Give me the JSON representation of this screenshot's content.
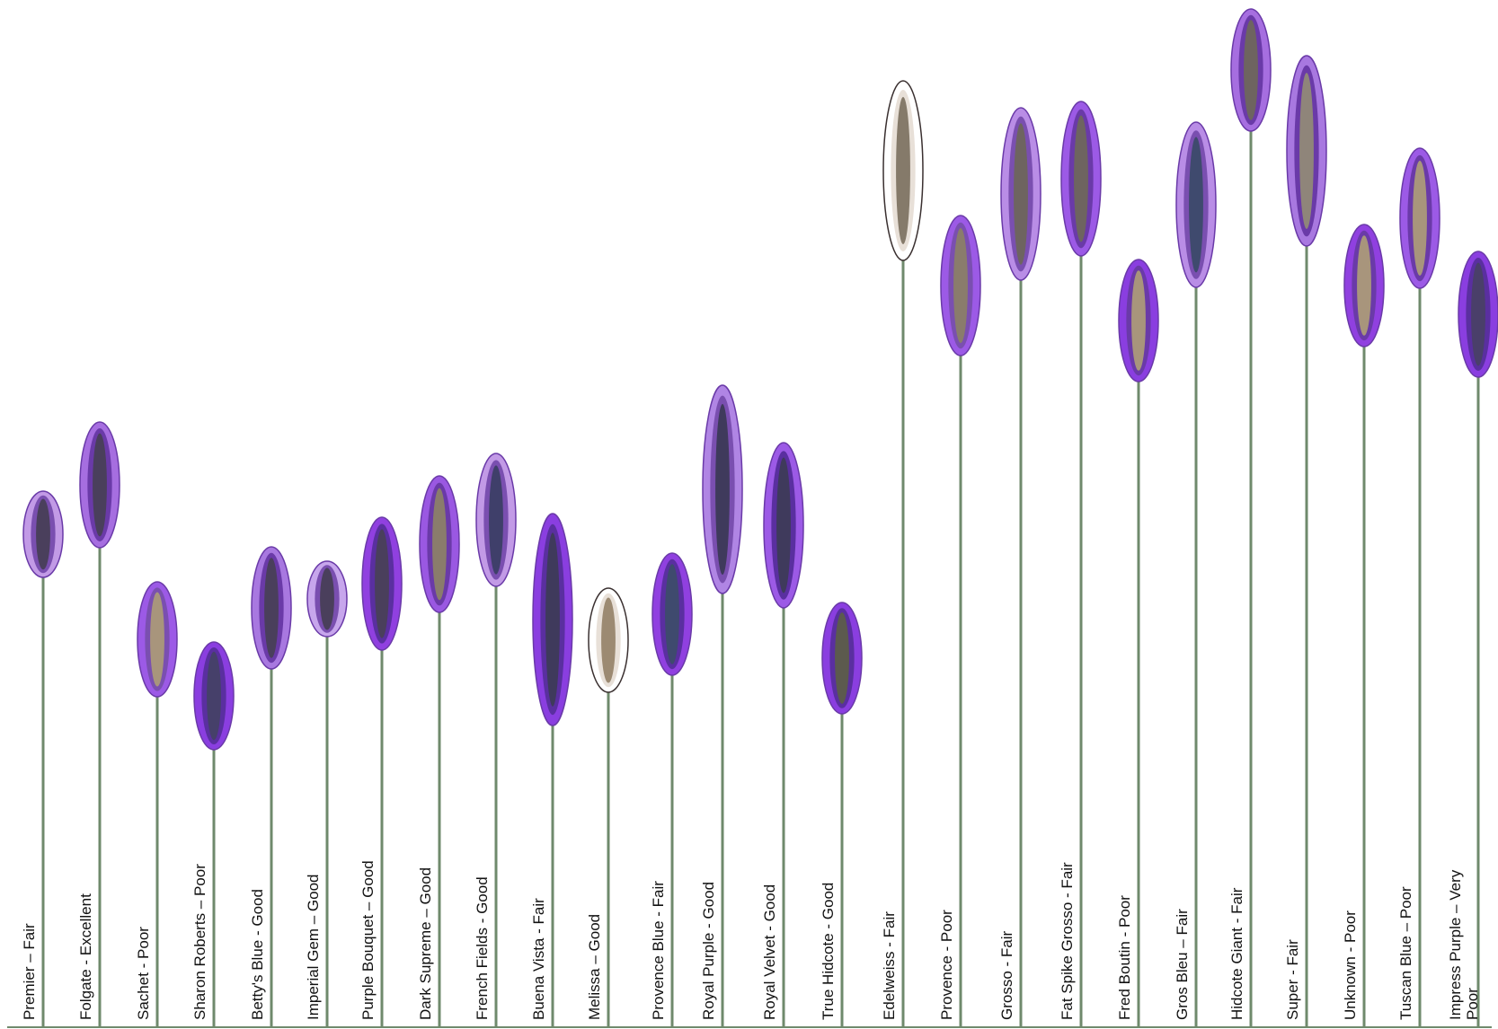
{
  "plants": [
    {
      "label": "Premier – Fair",
      "outer": "#c29ae6",
      "mid": "#7a4fb0",
      "core": "#4a3f5c"
    },
    {
      "label": "Folgate - Excellent",
      "outer": "#a66ee0",
      "mid": "#6a3aa8",
      "core": "#4a3f5c"
    },
    {
      "label": "Sachet - Poor",
      "outer": "#9c5ae6",
      "mid": "#7a4fb0",
      "core": "#a8957c"
    },
    {
      "label": "Sharon Roberts – Poor",
      "outer": "#8a3ee0",
      "mid": "#5a2fa0",
      "core": "#46406a"
    },
    {
      "label": "Betty's Blue - Good",
      "outer": "#a878e0",
      "mid": "#6a3aa8",
      "core": "#4a3f5c"
    },
    {
      "label": "Imperial Gem – Good",
      "outer": "#c7a6ec",
      "mid": "#7a4fb0",
      "core": "#4a3f5c"
    },
    {
      "label": "Purple Bouquet – Good",
      "outer": "#9040e0",
      "mid": "#5a2fa0",
      "core": "#4a3f5c"
    },
    {
      "label": "Dark Supreme – Good",
      "outer": "#9a58e2",
      "mid": "#6a3aa8",
      "core": "#8a7c6c"
    },
    {
      "label": "French Fields - Good",
      "outer": "#c29ae6",
      "mid": "#7a4fb0",
      "core": "#3f3f6a"
    },
    {
      "label": "Buena  Vista - Fair",
      "outer": "#8a3ee0",
      "mid": "#5a2fa0",
      "core": "#3f3a5c"
    },
    {
      "label": "Melissa – Good",
      "outer": "#ffffff",
      "mid": "#e8e0d8",
      "core": "#9c8a72"
    },
    {
      "label": "Provence Blue - Fair",
      "outer": "#9040e0",
      "mid": "#5a2fa0",
      "core": "#3f4a6e"
    },
    {
      "label": "Royal Purple - Good",
      "outer": "#b085e4",
      "mid": "#7a4fb0",
      "core": "#3f3a5c"
    },
    {
      "label": "Royal Velvet - Good",
      "outer": "#9c5ae6",
      "mid": "#5a2fa0",
      "core": "#3f3a5c"
    },
    {
      "label": "True Hidcote - Good",
      "outer": "#8a3ee0",
      "mid": "#5a2fa0",
      "core": "#5c5a4e"
    },
    {
      "label": "Edelweiss - Fair",
      "outer": "#ffffff",
      "mid": "#e8e0d8",
      "core": "#857a6a"
    },
    {
      "label": "Provence - Poor",
      "outer": "#9c5ae6",
      "mid": "#7a4fb0",
      "core": "#8a7c6c"
    },
    {
      "label": "Grosso - Fair",
      "outer": "#b98de6",
      "mid": "#7a4fb0",
      "core": "#6e6460"
    },
    {
      "label": "Fat Spike Grosso - Fair",
      "outer": "#9c5ae6",
      "mid": "#6a3aa8",
      "core": "#6e6460"
    },
    {
      "label": "Fred Boutin - Poor",
      "outer": "#8a3ee0",
      "mid": "#6a3aa8",
      "core": "#a8957c"
    },
    {
      "label": "Gros Bleu – Fair",
      "outer": "#b98de6",
      "mid": "#7a4fb0",
      "core": "#3f4a6e"
    },
    {
      "label": "Hidcote Giant - Fair",
      "outer": "#a66ee0",
      "mid": "#6a3aa8",
      "core": "#6e6460"
    },
    {
      "label": "Super - Fair",
      "outer": "#a878e0",
      "mid": "#6a3aa8",
      "core": "#8f857a"
    },
    {
      "label": "Unknown  - Poor",
      "outer": "#9040e0",
      "mid": "#6a3aa8",
      "core": "#a8957c"
    },
    {
      "label": "Tuscan Blue – Poor",
      "outer": "#9c5ae6",
      "mid": "#6a3aa8",
      "core": "#a8957c"
    },
    {
      "label": "Impress Purple – Very Poor",
      "outer": "#8a3ee0",
      "mid": "#5a2fa0",
      "core": "#4a3f6a"
    }
  ]
}
